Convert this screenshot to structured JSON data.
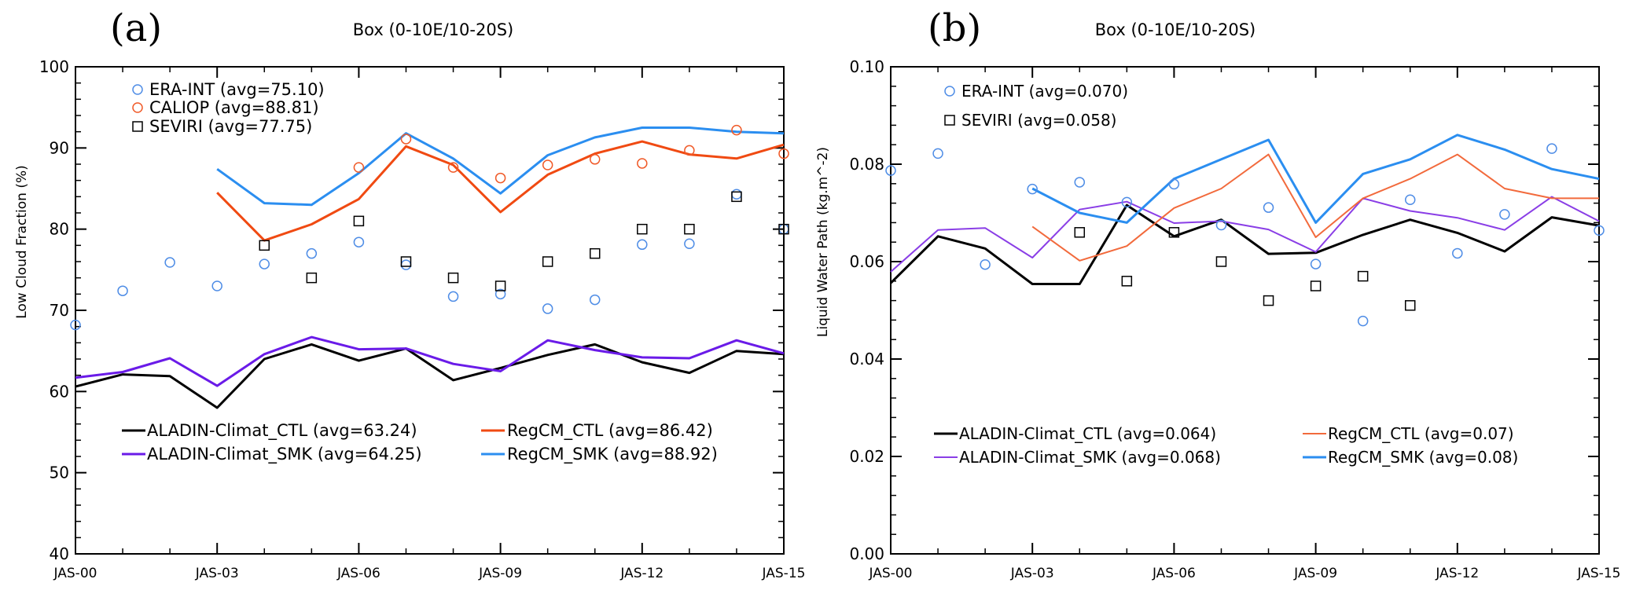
{
  "chart_data": [
    {
      "type": "line",
      "panel_label": "(a)",
      "title": "Box (0-10E/10-20S)",
      "xlabel": "",
      "ylabel": "Low Cloud Fraction (%)",
      "x": [
        2000,
        2001,
        2002,
        2003,
        2004,
        2005,
        2006,
        2007,
        2008,
        2009,
        2010,
        2011,
        2012,
        2013,
        2014,
        2015
      ],
      "xticks": [
        {
          "value": 2000,
          "label": "JAS-00"
        },
        {
          "value": 2003,
          "label": "JAS-03"
        },
        {
          "value": 2006,
          "label": "JAS-06"
        },
        {
          "value": 2009,
          "label": "JAS-09"
        },
        {
          "value": 2012,
          "label": "JAS-12"
        },
        {
          "value": 2015,
          "label": "JAS-15"
        }
      ],
      "xlim": [
        2000,
        2015
      ],
      "ylim": [
        40,
        100
      ],
      "yticks": [
        {
          "value": 40,
          "label": "40"
        },
        {
          "value": 50,
          "label": "50"
        },
        {
          "value": 60,
          "label": "60"
        },
        {
          "value": 70,
          "label": "70"
        },
        {
          "value": 80,
          "label": "80"
        },
        {
          "value": 90,
          "label": "90"
        },
        {
          "value": 100,
          "label": "100"
        }
      ],
      "series": [
        {
          "name": "ALADIN-Climat_CTL (avg=63.24)",
          "kind": "line",
          "color": "#000000",
          "width": 3,
          "values": [
            60.6,
            62.1,
            61.9,
            58.0,
            64.0,
            65.8,
            63.8,
            65.3,
            61.4,
            62.9,
            64.5,
            65.8,
            63.6,
            62.3,
            65.0,
            64.6
          ]
        },
        {
          "name": "ALADIN-Climat_SMK (avg=64.25)",
          "kind": "line",
          "color": "#6a1be8",
          "width": 3,
          "values": [
            61.7,
            62.4,
            64.1,
            60.7,
            64.6,
            66.7,
            65.2,
            65.3,
            63.4,
            62.5,
            66.3,
            65.1,
            64.2,
            64.1,
            66.3,
            64.7
          ]
        },
        {
          "name": "RegCM_CTL (avg=86.42)",
          "kind": "line",
          "color": "#f04a12",
          "width": 3,
          "values": [
            null,
            null,
            null,
            84.5,
            78.6,
            80.6,
            83.7,
            90.2,
            87.9,
            82.1,
            86.7,
            89.3,
            90.8,
            89.2,
            88.7,
            90.4
          ]
        },
        {
          "name": "RegCM_SMK (avg=88.92)",
          "kind": "line",
          "color": "#2b8ef0",
          "width": 3,
          "values": [
            null,
            null,
            null,
            87.4,
            83.2,
            83.0,
            86.9,
            91.8,
            88.7,
            84.4,
            89.1,
            91.3,
            92.5,
            92.5,
            92.0,
            91.8
          ]
        },
        {
          "name": "ERA-INT (avg=75.10)",
          "kind": "circle",
          "color": "#4f8de6",
          "values": [
            68.2,
            72.4,
            75.9,
            73.0,
            75.7,
            77.0,
            78.4,
            75.6,
            71.7,
            72.0,
            70.2,
            71.3,
            78.1,
            78.2,
            84.3,
            80.0
          ]
        },
        {
          "name": "CALIOP (avg=88.81)",
          "kind": "circle",
          "color": "#f05a28",
          "values": [
            null,
            null,
            null,
            null,
            null,
            null,
            87.6,
            91.1,
            87.6,
            86.3,
            87.9,
            88.6,
            88.1,
            89.7,
            92.2,
            89.3
          ]
        },
        {
          "name": "SEVIRI (avg=77.75)",
          "kind": "square",
          "color": "#000000",
          "values": [
            null,
            null,
            null,
            null,
            78.0,
            74.0,
            81.0,
            76.0,
            74.0,
            73.0,
            76.0,
            77.0,
            80.0,
            80.0,
            84.0,
            80.0
          ]
        }
      ],
      "legend_top": [
        "ERA-INT (avg=75.10)",
        "CALIOP (avg=88.81)",
        "SEVIRI (avg=77.75)"
      ],
      "legend_bottom": [
        [
          "ALADIN-Climat_CTL (avg=63.24)",
          "RegCM_CTL (avg=86.42)"
        ],
        [
          "ALADIN-Climat_SMK (avg=64.25)",
          "RegCM_SMK (avg=88.92)"
        ]
      ]
    },
    {
      "type": "line",
      "panel_label": "(b)",
      "title": "Box (0-10E/10-20S)",
      "xlabel": "",
      "ylabel": "Liquid Water Path (kg.m^-2)",
      "x": [
        2000,
        2001,
        2002,
        2003,
        2004,
        2005,
        2006,
        2007,
        2008,
        2009,
        2010,
        2011,
        2012,
        2013,
        2014,
        2015
      ],
      "xticks": [
        {
          "value": 2000,
          "label": "JAS-00"
        },
        {
          "value": 2003,
          "label": "JAS-03"
        },
        {
          "value": 2006,
          "label": "JAS-06"
        },
        {
          "value": 2009,
          "label": "JAS-09"
        },
        {
          "value": 2012,
          "label": "JAS-12"
        },
        {
          "value": 2015,
          "label": "JAS-15"
        }
      ],
      "xlim": [
        2000,
        2015
      ],
      "ylim": [
        0,
        0.1
      ],
      "yticks": [
        {
          "value": 0,
          "label": "0.00"
        },
        {
          "value": 0.02,
          "label": "0.02"
        },
        {
          "value": 0.04,
          "label": "0.04"
        },
        {
          "value": 0.06,
          "label": "0.06"
        },
        {
          "value": 0.08,
          "label": "0.08"
        },
        {
          "value": 0.1,
          "label": "0.10"
        }
      ],
      "series": [
        {
          "name": "ALADIN-Climat_CTL (avg=0.064)",
          "kind": "line",
          "color": "#000000",
          "width": 3,
          "values": [
            0.0556,
            0.0652,
            0.0627,
            0.0554,
            0.0554,
            0.0716,
            0.0652,
            0.0686,
            0.0616,
            0.0618,
            0.0655,
            0.0686,
            0.0659,
            0.0621,
            0.0691,
            0.0674
          ]
        },
        {
          "name": "ALADIN-Climat_SMK (avg=0.068)",
          "kind": "line",
          "color": "#8a3ee6",
          "width": 2,
          "values": [
            0.0579,
            0.0665,
            0.0669,
            0.0608,
            0.0707,
            0.0723,
            0.0679,
            0.0683,
            0.0666,
            0.062,
            0.073,
            0.0704,
            0.069,
            0.0665,
            0.0733,
            0.0683
          ]
        },
        {
          "name": "RegCM_CTL (avg=0.07)",
          "kind": "line",
          "color": "#f26a3c",
          "width": 2,
          "values": [
            null,
            null,
            null,
            0.0672,
            0.0602,
            0.0632,
            0.071,
            0.075,
            0.082,
            0.065,
            0.073,
            0.077,
            0.082,
            0.075,
            0.073,
            0.073
          ]
        },
        {
          "name": "RegCM_SMK (avg=0.08)",
          "kind": "line",
          "color": "#2b8ef0",
          "width": 3,
          "values": [
            null,
            null,
            null,
            0.075,
            0.07,
            0.068,
            0.077,
            0.081,
            0.085,
            0.068,
            0.078,
            0.081,
            0.086,
            0.083,
            0.079,
            0.077
          ]
        },
        {
          "name": "ERA-INT (avg=0.070)",
          "kind": "circle",
          "color": "#4f8de6",
          "values": [
            0.0787,
            0.0822,
            0.0594,
            0.0749,
            0.0763,
            0.0722,
            0.0759,
            0.0675,
            0.0711,
            0.0595,
            0.0478,
            0.0727,
            0.0617,
            0.0697,
            0.0832,
            0.0664
          ]
        },
        {
          "name": "SEVIRI (avg=0.058)",
          "kind": "square",
          "color": "#000000",
          "values": [
            null,
            null,
            null,
            null,
            0.066,
            0.056,
            0.066,
            0.06,
            0.052,
            0.055,
            0.057,
            0.051,
            null,
            null,
            null,
            null
          ]
        }
      ],
      "legend_top": [
        "ERA-INT (avg=0.070)",
        "SEVIRI (avg=0.058)"
      ],
      "legend_bottom": [
        [
          "ALADIN-Climat_CTL (avg=0.064)",
          "RegCM_CTL (avg=0.07)"
        ],
        [
          "ALADIN-Climat_SMK (avg=0.068)",
          "RegCM_SMK (avg=0.08)"
        ]
      ]
    }
  ]
}
